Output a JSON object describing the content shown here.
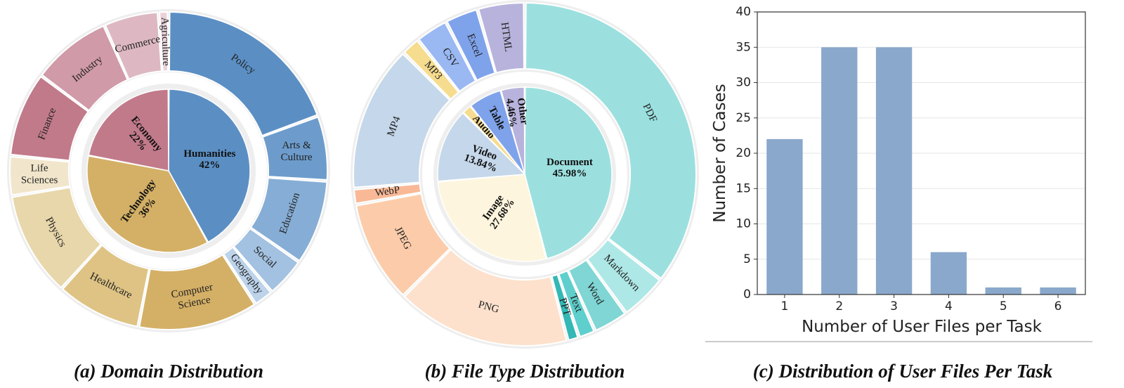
{
  "captions": {
    "a": "(a) Domain Distribution",
    "b": "(b) File Type Distribution",
    "c": "(c) Distribution of User Files Per Task"
  },
  "chart_data": [
    {
      "type": "pie",
      "id": "domain",
      "inner": [
        {
          "name": "Humanities",
          "value": 42,
          "label": "42%",
          "color": "#5b8fc4"
        },
        {
          "name": "Technology",
          "value": 36,
          "label": "36%",
          "color": "#d4b066"
        },
        {
          "name": "Economy",
          "value": 22,
          "label": "22%",
          "color": "#c17a8a"
        }
      ],
      "outer": [
        {
          "name": "Policy",
          "value": 19,
          "color": "#5b8fc4"
        },
        {
          "name": "Arts & Culture",
          "value": 6.5,
          "color": "#6d9ccc"
        },
        {
          "name": "Education",
          "value": 8.5,
          "color": "#86add5"
        },
        {
          "name": "Social",
          "value": 4,
          "color": "#a3c1e0"
        },
        {
          "name": "Geography",
          "value": 2,
          "color": "#bcd3ea"
        },
        {
          "name": "Computer Science",
          "value": 12,
          "color": "#d4b066"
        },
        {
          "name": "Healthcare",
          "value": 8.5,
          "color": "#dec384"
        },
        {
          "name": "Physics",
          "value": 10.5,
          "color": "#e8d7ab"
        },
        {
          "name": "Life Sciences",
          "value": 4,
          "color": "#f1e6cb"
        },
        {
          "name": "Finance",
          "value": 8.5,
          "color": "#c17a8a"
        },
        {
          "name": "Industry",
          "value": 8,
          "color": "#d09aa8"
        },
        {
          "name": "Commerce",
          "value": 5.5,
          "color": "#ddb8c2"
        },
        {
          "name": "Agriculture",
          "value": 1,
          "color": "#ead2d8"
        }
      ]
    },
    {
      "type": "pie",
      "id": "filetype",
      "inner": [
        {
          "name": "Document",
          "value": 45.98,
          "label": "45.98%",
          "color": "#9be0df"
        },
        {
          "name": "Image",
          "value": 27.68,
          "label": "27.68%",
          "color": "#fdf5dd"
        },
        {
          "name": "Video",
          "value": 13.84,
          "label": "13.84%",
          "color": "#c5d7ea"
        },
        {
          "name": "Audio",
          "value": 1.8,
          "label": "",
          "color": "#f6dc8e"
        },
        {
          "name": "Table",
          "value": 6.24,
          "label": "",
          "color": "#7fa3ea"
        },
        {
          "name": "Other",
          "value": 4.46,
          "label": "4.46%",
          "color": "#b8b3dc"
        }
      ],
      "outer": [
        {
          "name": "PDF",
          "value": 35.5,
          "color": "#9be0df"
        },
        {
          "name": "Markdown",
          "value": 4.5,
          "color": "#aee8e6"
        },
        {
          "name": "Word",
          "value": 3.3,
          "color": "#7fd6d4"
        },
        {
          "name": "Text",
          "value": 1.6,
          "color": "#5ecfcc"
        },
        {
          "name": "PPT",
          "value": 1.1,
          "color": "#33b8b5"
        },
        {
          "name": "PNG",
          "value": 16.5,
          "color": "#fde1cc"
        },
        {
          "name": "JPEG",
          "value": 9.7,
          "color": "#fcccaa"
        },
        {
          "name": "WebP",
          "value": 1.5,
          "color": "#f9b996"
        },
        {
          "name": "MP4",
          "value": 13.84,
          "color": "#c5d7ea"
        },
        {
          "name": "MP3",
          "value": 1.8,
          "color": "#f6dc8e"
        },
        {
          "name": "CSV",
          "value": 3.1,
          "color": "#9ab8f2"
        },
        {
          "name": "Excel",
          "value": 3.14,
          "color": "#7fa3ea"
        },
        {
          "name": "HTML",
          "value": 4.46,
          "color": "#b8b3dc"
        }
      ]
    },
    {
      "type": "bar",
      "id": "userfiles",
      "categories": [
        "1",
        "2",
        "3",
        "4",
        "5",
        "6"
      ],
      "values": [
        22,
        35,
        35,
        6,
        1,
        1
      ],
      "xlabel": "Number of User Files per Task",
      "ylabel": "Number of Cases",
      "ylim": [
        0,
        40
      ],
      "yticks": [
        "0",
        "5",
        "10",
        "15",
        "20",
        "25",
        "30",
        "35",
        "40"
      ],
      "grid": true,
      "color": "#8aa8cb"
    }
  ]
}
